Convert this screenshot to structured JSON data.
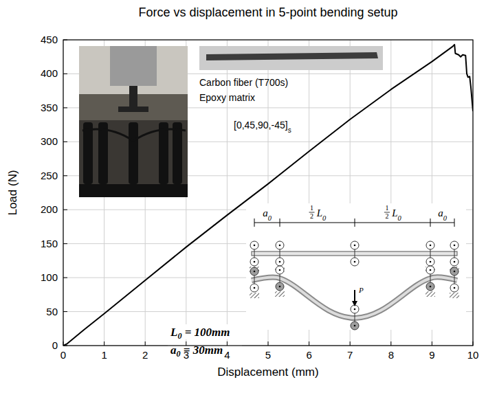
{
  "chart_data": {
    "type": "line",
    "title": "Force vs displacement in 5-point bending setup",
    "x_label": "Displacement (mm)",
    "y_label": "Load (N)",
    "xlim": [
      0,
      10
    ],
    "ylim": [
      0,
      450
    ],
    "xticks": [
      0,
      1,
      2,
      3,
      4,
      5,
      6,
      7,
      8,
      9,
      10
    ],
    "yticks": [
      0,
      50,
      100,
      150,
      200,
      250,
      300,
      350,
      400,
      450
    ],
    "grid": true,
    "series": [
      {
        "color": "#000000",
        "line_style": "solid",
        "x": [
          0,
          0.1,
          0.5,
          1,
          2,
          3,
          4,
          5,
          6,
          7,
          8,
          9,
          9.5,
          9.55,
          9.57,
          9.65,
          9.7,
          9.75,
          9.82,
          9.85,
          9.88,
          9.92,
          9.95,
          10
        ],
        "values": [
          0,
          3,
          23,
          47,
          96,
          145,
          192,
          238,
          286,
          333,
          377,
          418,
          440,
          443,
          430,
          428,
          425,
          428,
          427,
          400,
          395,
          396,
          380,
          345
        ]
      }
    ],
    "annotations": {
      "material": [
        "Carbon fiber (T700s)",
        "Epoxy matrix"
      ],
      "layup": {
        "text": "[0,45,90,-45]",
        "sub": "s"
      },
      "diagram": {
        "span_end": {
          "base": "a",
          "sub": "0"
        },
        "span_half": {
          "numerator": "1",
          "denominator": "2",
          "base": "L",
          "sub": "0"
        },
        "load": "P"
      },
      "dimensions": [
        {
          "base": "L",
          "sub": "0",
          "text": " = 100mm"
        },
        {
          "base": "a",
          "sub": "0",
          "text": " = 30mm"
        }
      ]
    }
  }
}
